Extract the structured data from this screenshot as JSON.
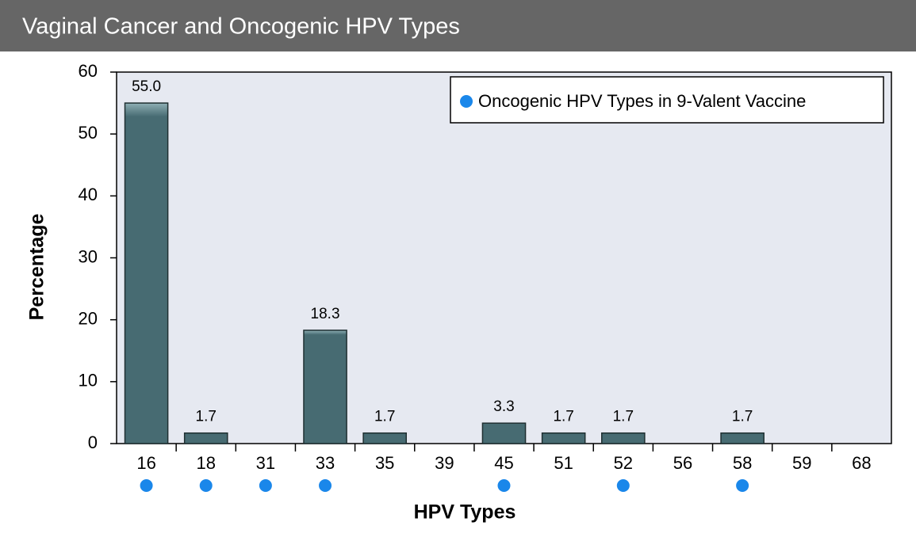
{
  "chart_data": {
    "type": "bar",
    "title": "Vaginal Cancer and Oncogenic HPV Types",
    "x_label": "HPV Types",
    "y_label": "Percentage",
    "categories": [
      "16",
      "18",
      "31",
      "33",
      "35",
      "39",
      "45",
      "51",
      "52",
      "56",
      "58",
      "59",
      "68"
    ],
    "values": [
      55.0,
      1.7,
      0,
      18.3,
      1.7,
      0,
      3.3,
      1.7,
      1.7,
      0,
      1.7,
      0,
      0
    ],
    "value_labels": [
      "55.0",
      "1.7",
      null,
      "18.3",
      "1.7",
      null,
      "3.3",
      "1.7",
      "1.7",
      null,
      "1.7",
      null,
      null
    ],
    "color": "#476b72",
    "ylim": [
      0,
      60
    ],
    "yticks": [
      0,
      10,
      20,
      30,
      40,
      50,
      60
    ],
    "marker": {
      "name": "Oncogenic HPV Types in 9-Valent Vaccine",
      "color": "#1a87ea",
      "flags": [
        true,
        true,
        true,
        true,
        false,
        false,
        true,
        false,
        true,
        false,
        true,
        false,
        false
      ]
    },
    "plot_background": "#e6e9f1"
  }
}
